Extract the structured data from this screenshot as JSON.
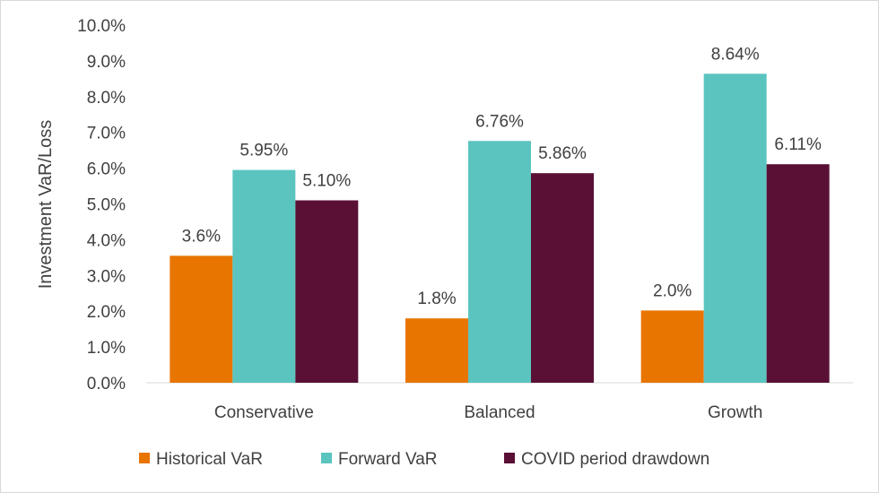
{
  "chart_data": {
    "type": "bar",
    "title": "",
    "xlabel": "",
    "ylabel": "Investment VaR/Loss",
    "ylim": [
      0,
      10
    ],
    "yticks": [
      "0.0%",
      "1.0%",
      "2.0%",
      "3.0%",
      "4.0%",
      "5.0%",
      "6.0%",
      "7.0%",
      "8.0%",
      "9.0%",
      "10.0%"
    ],
    "categories": [
      "Conservative",
      "Balanced",
      "Growth"
    ],
    "series": [
      {
        "name": "Historical VaR",
        "color": "#E87500",
        "values": [
          3.55,
          1.8,
          2.02
        ],
        "labels": [
          "3.6%",
          "1.8%",
          "2.0%"
        ]
      },
      {
        "name": "Forward VaR",
        "color": "#5BC4BF",
        "values": [
          5.95,
          6.76,
          8.64
        ],
        "labels": [
          "5.95%",
          "6.76%",
          "8.64%"
        ]
      },
      {
        "name": "COVID period drawdown",
        "color": "#5A1035",
        "values": [
          5.1,
          5.86,
          6.11
        ],
        "labels": [
          "5.10%",
          "5.86%",
          "6.11%"
        ]
      }
    ],
    "grid": false,
    "legend_position": "bottom"
  }
}
